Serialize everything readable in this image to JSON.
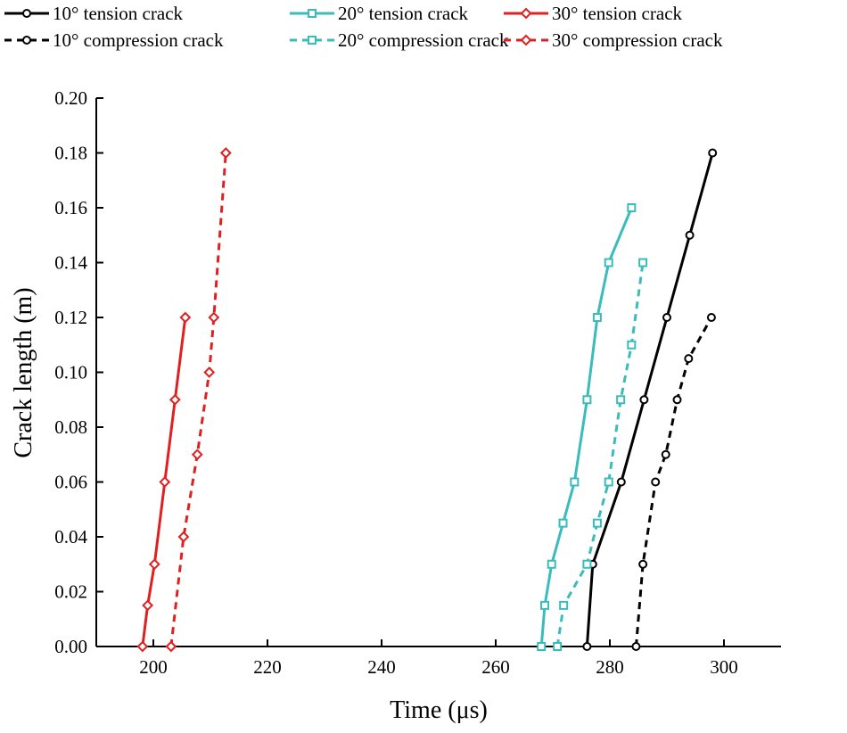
{
  "chart_data": {
    "type": "line",
    "xlabel": "Time (μs)",
    "ylabel": "Crack length (m)",
    "xlim": [
      190,
      310
    ],
    "ylim": [
      0,
      0.2
    ],
    "xticks": [
      200,
      220,
      240,
      260,
      280,
      300
    ],
    "yticks": [
      "0.00",
      "0.02",
      "0.04",
      "0.06",
      "0.08",
      "0.10",
      "0.12",
      "0.14",
      "0.16",
      "0.18",
      "0.20"
    ],
    "grid": false,
    "legend_position": "top",
    "series": [
      {
        "name": "10° tension crack",
        "color": "#000000",
        "dash": false,
        "marker": "circle",
        "x": [
          276,
          277,
          282,
          286,
          290,
          294,
          298
        ],
        "y": [
          0,
          0.03,
          0.06,
          0.09,
          0.12,
          0.15,
          0.18
        ]
      },
      {
        "name": "20° tension crack",
        "color": "#3bbcbc",
        "dash": false,
        "marker": "square",
        "x": [
          268,
          268.6,
          269.8,
          271.8,
          273.8,
          276,
          277.8,
          279.8,
          283.8
        ],
        "y": [
          0,
          0.015,
          0.03,
          0.045,
          0.06,
          0.09,
          0.12,
          0.14,
          0.16
        ]
      },
      {
        "name": "30° tension crack",
        "color": "#e02020",
        "dash": false,
        "marker": "diamond",
        "x": [
          198.1,
          199,
          200.2,
          202,
          203.8,
          205.6
        ],
        "y": [
          0,
          0.015,
          0.03,
          0.06,
          0.09,
          0.12
        ]
      },
      {
        "name": "10° compression crack",
        "color": "#000000",
        "dash": true,
        "marker": "circle",
        "x": [
          284.6,
          285.8,
          288,
          289.8,
          291.8,
          293.8,
          297.8
        ],
        "y": [
          0,
          0.03,
          0.06,
          0.07,
          0.09,
          0.105,
          0.12
        ]
      },
      {
        "name": "20° compression crack",
        "color": "#3bbcbc",
        "dash": true,
        "marker": "square",
        "x": [
          270.8,
          271.9,
          276,
          277.8,
          279.8,
          281.9,
          283.8,
          285.8
        ],
        "y": [
          0,
          0.015,
          0.03,
          0.045,
          0.06,
          0.09,
          0.11,
          0.14
        ]
      },
      {
        "name": "30° compression crack",
        "color": "#e02020",
        "dash": true,
        "marker": "diamond",
        "x": [
          203.1,
          205.3,
          207.7,
          209.8,
          210.6,
          212.7
        ],
        "y": [
          0,
          0.04,
          0.07,
          0.1,
          0.12,
          0.18
        ]
      }
    ]
  }
}
